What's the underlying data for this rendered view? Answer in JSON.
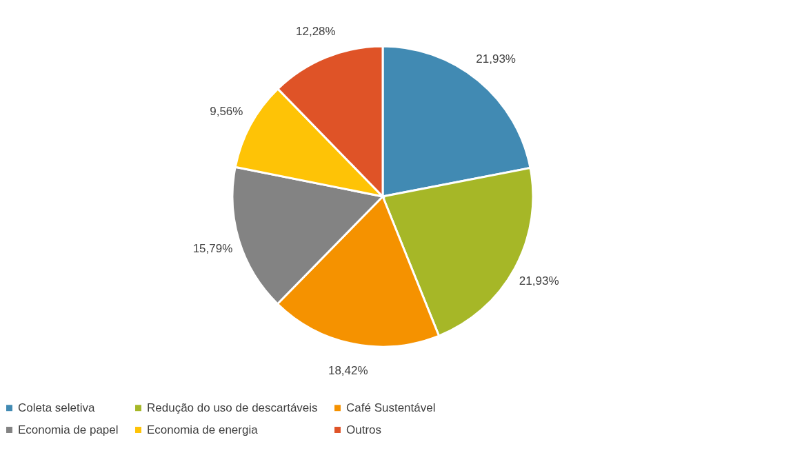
{
  "chart_data": {
    "type": "pie",
    "categories": [
      "Coleta seletiva",
      "Redução do uso de descartáveis",
      "Café Sustentável",
      "Economia de papel",
      "Economia de energia",
      "Outros"
    ],
    "values": [
      21.93,
      21.93,
      18.42,
      15.79,
      9.56,
      12.28
    ],
    "value_labels": [
      "21,93%",
      "21,93%",
      "18,42%",
      "15,79%",
      "9,56%",
      "12,28%"
    ],
    "colors": [
      "#418ab3",
      "#a6b727",
      "#f59200",
      "#838383",
      "#fec306",
      "#df5327"
    ],
    "legend": "bottom"
  }
}
